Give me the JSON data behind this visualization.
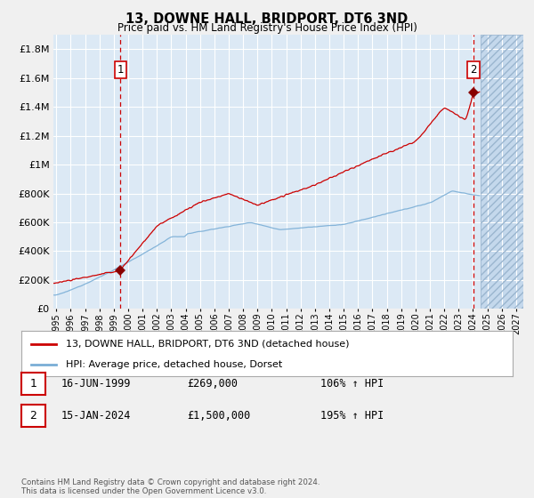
{
  "title": "13, DOWNE HALL, BRIDPORT, DT6 3ND",
  "subtitle": "Price paid vs. HM Land Registry's House Price Index (HPI)",
  "bg_color": "#dce9f5",
  "grid_color": "#ffffff",
  "hatch_color": "#b8cfe0",
  "red_line_color": "#cc0000",
  "blue_line_color": "#7aaed6",
  "marker_color": "#880000",
  "dashed_color": "#cc0000",
  "fig_bg_color": "#f0f0f0",
  "ylim_max": 1900000,
  "yticks": [
    0,
    200000,
    400000,
    600000,
    800000,
    1000000,
    1200000,
    1400000,
    1600000,
    1800000
  ],
  "ytick_labels": [
    "£0",
    "£200K",
    "£400K",
    "£600K",
    "£800K",
    "£1M",
    "£1.2M",
    "£1.4M",
    "£1.6M",
    "£1.8M"
  ],
  "xmin_year": 1994.8,
  "xmax_year": 2027.5,
  "sale1_year": 1999.46,
  "sale1_price": 269000,
  "sale2_year": 2024.04,
  "sale2_price": 1500000,
  "hatch_start": 2024.5,
  "legend_line1": "13, DOWNE HALL, BRIDPORT, DT6 3ND (detached house)",
  "legend_line2": "HPI: Average price, detached house, Dorset",
  "annotation1_date": "16-JUN-1999",
  "annotation1_price": "£269,000",
  "annotation1_hpi": "106% ↑ HPI",
  "annotation2_date": "15-JAN-2024",
  "annotation2_price": "£1,500,000",
  "annotation2_hpi": "195% ↑ HPI",
  "footer": "Contains HM Land Registry data © Crown copyright and database right 2024.\nThis data is licensed under the Open Government Licence v3.0.",
  "xtick_years": [
    1995,
    1996,
    1997,
    1998,
    1999,
    2000,
    2001,
    2002,
    2003,
    2004,
    2005,
    2006,
    2007,
    2008,
    2009,
    2010,
    2011,
    2012,
    2013,
    2014,
    2015,
    2016,
    2017,
    2018,
    2019,
    2020,
    2021,
    2022,
    2023,
    2024,
    2025,
    2026,
    2027
  ]
}
